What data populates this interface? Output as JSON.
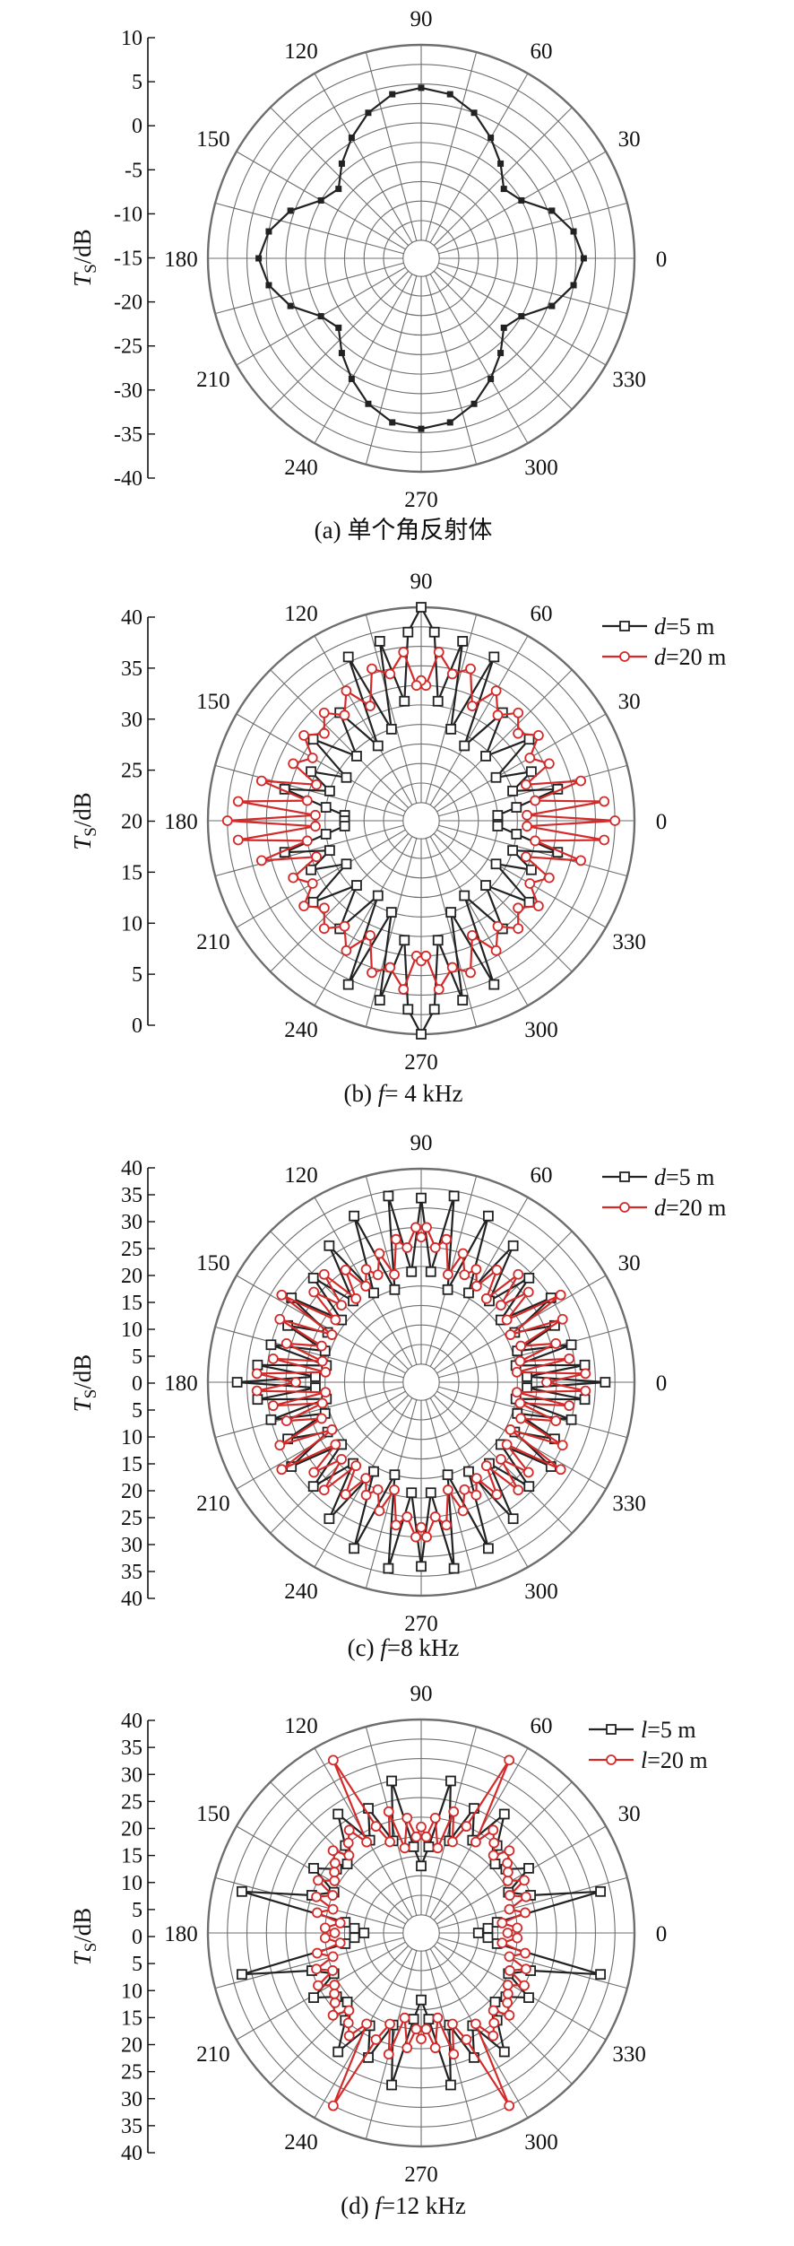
{
  "colors": {
    "black": "#222222",
    "red": "#d42a2a",
    "grid": "#6e6e6e"
  },
  "chart_data": [
    {
      "type": "polar-line",
      "title": "",
      "caption": "(a) 单个角反射体",
      "ylabel": "Ts/dB",
      "angle_labels": [
        "0",
        "30",
        "60",
        "90",
        "120",
        "150",
        "180",
        "210",
        "240",
        "270",
        "300",
        "330"
      ],
      "radial_ticks": [
        "10",
        "5",
        "0",
        "-5",
        "-10",
        "-15",
        "-20",
        "-25",
        "-30",
        "-35",
        "-40"
      ],
      "radial_range": [
        -40,
        10
      ],
      "legend": [],
      "series": [
        {
          "name": "",
          "color": "#222222",
          "marker": "filled-square",
          "sample_angles_deg": [
            0,
            10,
            20,
            30,
            40,
            50,
            60,
            70,
            80,
            90
          ],
          "sample_values_db": [
            -3,
            -5,
            -9,
            -15,
            -17,
            -13,
            -9,
            -5,
            -2,
            -1
          ],
          "symmetry": "four-fold mirror about 0 and 90 deg"
        }
      ]
    },
    {
      "type": "polar-line",
      "title": "",
      "caption": "(b) f= 4 kHz",
      "ylabel": "Ts/dB",
      "angle_labels": [
        "0",
        "30",
        "60",
        "90",
        "120",
        "150",
        "180",
        "210",
        "240",
        "270",
        "300",
        "330"
      ],
      "radial_ticks": [
        "40",
        "35",
        "30",
        "25",
        "20",
        "15",
        "10",
        "5",
        "0"
      ],
      "radial_range": [
        0,
        40
      ],
      "legend": [
        {
          "label": "d=5 m",
          "color": "#222222"
        },
        {
          "label": "d=20 m",
          "color": "#d42a2a"
        }
      ],
      "series": [
        {
          "name": "d=5 m",
          "color": "#222222",
          "marker": "open-square",
          "sample_angles_deg": [
            0,
            4,
            8,
            13,
            18,
            24,
            30,
            37,
            45,
            53,
            60,
            66,
            72,
            77,
            82,
            86,
            90
          ],
          "sample_values_db": [
            12,
            12,
            16,
            25,
            16,
            21,
            14,
            24,
            15,
            24,
            14,
            33,
            16,
            34,
            21,
            35,
            40
          ],
          "symmetry": "four-fold mirror about 0 and 90 deg"
        },
        {
          "name": "d=20 m",
          "color": "#d42a2a",
          "marker": "open-circle",
          "sample_angles_deg": [
            0,
            3,
            6,
            10,
            14,
            19,
            24,
            30,
            36,
            42,
            48,
            54,
            60,
            66,
            72,
            78,
            84,
            88,
            90
          ],
          "sample_values_db": [
            36,
            18,
            34,
            20,
            30,
            19,
            25,
            22,
            26,
            23,
            26,
            23,
            27,
            22,
            29,
            27,
            31,
            24,
            25
          ],
          "symmetry": "four-fold mirror about 0 and 90 deg"
        }
      ]
    },
    {
      "type": "polar-line",
      "title": "",
      "caption": "(c) f=8 kHz",
      "ylabel": "Ts/dB",
      "angle_labels": [
        "0",
        "30",
        "60",
        "90",
        "120",
        "150",
        "180",
        "210",
        "240",
        "270",
        "300",
        "330"
      ],
      "radial_ticks": [
        "40",
        "35",
        "30",
        "25",
        "20",
        "15",
        "10",
        "5",
        "0",
        "5",
        "10",
        "15",
        "20",
        "25",
        "30",
        "35",
        "40"
      ],
      "radial_range": [
        0,
        40
      ],
      "legend": [
        {
          "label": "d=5 m",
          "color": "#222222"
        },
        {
          "label": "d=20 m",
          "color": "#d42a2a"
        }
      ],
      "series": [
        {
          "name": "d=5 m",
          "color": "#222222",
          "marker": "open-square",
          "sample_angles_deg": [
            0,
            3,
            6,
            10,
            14,
            18,
            23,
            28,
            33,
            38,
            44,
            50,
            56,
            62,
            68,
            74,
            80,
            85,
            90
          ],
          "sample_values_db": [
            34,
            18,
            30,
            16,
            28,
            17,
            26,
            18,
            28,
            17,
            27,
            18,
            30,
            17,
            33,
            16,
            35,
            19,
            34
          ],
          "symmetry": "four-fold mirror about 0 and 90 deg"
        },
        {
          "name": "d=20 m",
          "color": "#d42a2a",
          "marker": "open-circle",
          "sample_angles_deg": [
            0,
            3,
            6,
            9,
            12,
            16,
            20,
            24,
            28,
            32,
            36,
            40,
            44,
            48,
            52,
            56,
            60,
            64,
            68,
            72,
            76,
            80,
            84,
            88,
            90
          ],
          "sample_values_db": [
            22,
            30,
            16,
            27,
            17,
            25,
            18,
            28,
            17,
            30,
            18,
            25,
            19,
            26,
            18,
            24,
            19,
            22,
            20,
            24,
            19,
            26,
            24,
            28,
            26
          ],
          "symmetry": "four-fold mirror about 0 and 90 deg"
        }
      ]
    },
    {
      "type": "polar-line",
      "title": "",
      "caption": "(d) f=12 kHz",
      "ylabel": "Ts/dB",
      "angle_labels": [
        "0",
        "30",
        "60",
        "90",
        "120",
        "150",
        "180",
        "210",
        "240",
        "270",
        "300",
        "330"
      ],
      "radial_ticks": [
        "40",
        "35",
        "30",
        "25",
        "20",
        "15",
        "10",
        "5",
        "0",
        "5",
        "10",
        "15",
        "20",
        "25",
        "30",
        "35",
        "40"
      ],
      "radial_range": [
        0,
        40
      ],
      "legend": [
        {
          "label": "l=5 m",
          "color": "#222222"
        },
        {
          "label": "l=20 m",
          "color": "#d42a2a"
        }
      ],
      "series": [
        {
          "name": "l=5 m",
          "color": "#222222",
          "marker": "open-square",
          "sample_angles_deg": [
            0,
            4,
            8,
            13,
            19,
            25,
            31,
            37,
            43,
            49,
            55,
            61,
            67,
            73,
            79,
            85,
            90
          ],
          "sample_values_db": [
            8,
            10,
            12,
            34,
            20,
            16,
            22,
            18,
            17,
            20,
            26,
            18,
            24,
            16,
            28,
            14,
            10
          ],
          "symmetry": "four-fold mirror about 0 and 90 deg"
        },
        {
          "name": "l=20 m",
          "color": "#d42a2a",
          "marker": "open-circle",
          "sample_angles_deg": [
            0,
            3,
            7,
            11,
            15,
            19,
            23,
            27,
            31,
            35,
            39,
            43,
            47,
            51,
            55,
            59,
            63,
            67,
            71,
            75,
            79,
            83,
            87,
            90
          ],
          "sample_values_db": [
            14,
            16,
            13,
            18,
            15,
            19,
            16,
            20,
            17,
            18,
            19,
            21,
            18,
            20,
            22,
            18,
            36,
            20,
            16,
            22,
            14,
            20,
            16,
            18
          ],
          "symmetry": "four-fold mirror about 0 and 90 deg"
        }
      ]
    }
  ]
}
